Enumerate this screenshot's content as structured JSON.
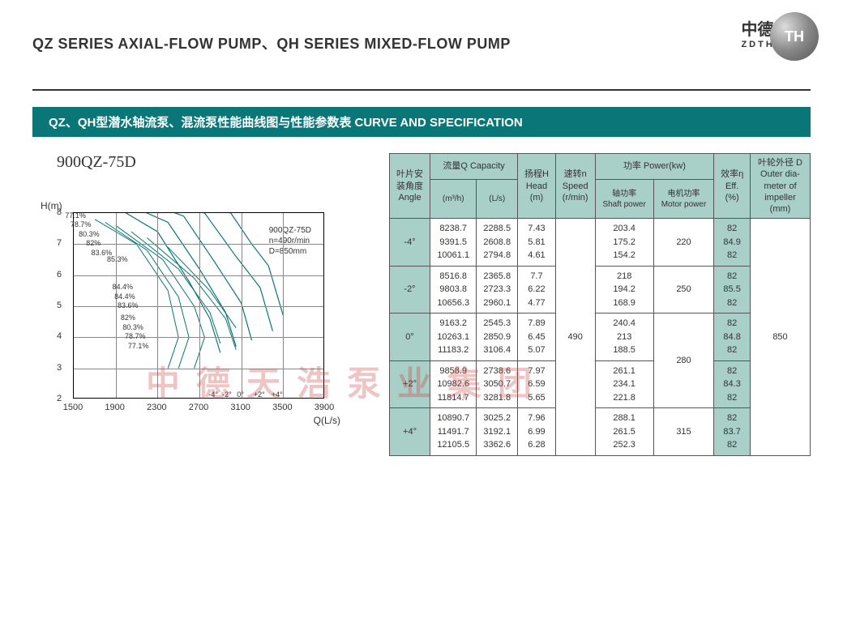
{
  "header": {
    "title": "QZ SERIES AXIAL-FLOW PUMP、QH SERIES MIXED-FLOW PUMP",
    "logo_cn": "中德 天浩",
    "logo_en": "ZDTHPUMP",
    "logo_badge": "TH"
  },
  "banner": "QZ、QH型潜水轴流泵、混流泵性能曲线图与性能参数表  CURVE AND SPECIFICATION",
  "model": "900QZ-75D",
  "watermark": "中德天浩泵业集团",
  "chart": {
    "y_title": "H(m)",
    "x_title": "Q(L/s)",
    "y_ticks": [
      2,
      3,
      4,
      5,
      6,
      7,
      8
    ],
    "x_ticks": [
      1500,
      1900,
      2300,
      2700,
      3100,
      3500,
      3900
    ],
    "info_lines": [
      "900QZ-75D",
      "n=490r/min",
      "D=850mm"
    ],
    "angle_labels": [
      "-4°",
      "-2°",
      "0°",
      "+2°",
      "+4°"
    ],
    "eff_labels": [
      "77.1%",
      "78.7%",
      "80.3%",
      "82%",
      "83.6%",
      "85.3%",
      "84.4%",
      "84.4%",
      "83.6%",
      "82%",
      "80.3%",
      "78.7%",
      "77.1%"
    ],
    "grid_color": "#888888",
    "curve_color": "#0a7678"
  },
  "table": {
    "headers": {
      "angle": "叶片安\n装角度\nAngle",
      "capacity": "流量Q Capacity",
      "capacity_m3h": "(m³/h)",
      "capacity_ls": "(L/s)",
      "head": "扬程H\nHead\n(m)",
      "speed": "速转n\nSpeed\n(r/min)",
      "power": "功率 Power(kw)",
      "shaft_power": "轴功率\nShaft power",
      "motor_power": "电机功率\nMotor power",
      "eff": "效率η\nEff.\n(%)",
      "diameter": "叶轮外径 D\nOuter dia-\nmeter of\nimpeller\n(mm)"
    },
    "speed_val": "490",
    "diameter_val": "850",
    "rows": [
      {
        "angle": "-4°",
        "m3h": "8238.7\n9391.5\n10061.1",
        "ls": "2288.5\n2608.8\n2794.8",
        "head": "7.43\n5.81\n4.61",
        "shaft": "203.4\n175.2\n154.2",
        "motor": "220",
        "eff": "82\n84.9\n82"
      },
      {
        "angle": "-2°",
        "m3h": "8516.8\n9803.8\n10656.3",
        "ls": "2365.8\n2723.3\n2960.1",
        "head": "7.7\n6.22\n4.77",
        "shaft": "218\n194.2\n168.9",
        "motor": "250",
        "eff": "82\n85.5\n82"
      },
      {
        "angle": "0°",
        "m3h": "9163.2\n10263.1\n11183.2",
        "ls": "2545.3\n2850.9\n3106.4",
        "head": "7.89\n6.45\n5.07",
        "shaft": "240.4\n213\n188.5",
        "motor": "280",
        "motor_rowspan": 2,
        "eff": "82\n84.8\n82"
      },
      {
        "angle": "+2°",
        "m3h": "9858.9\n10982.6\n11814.7",
        "ls": "2738.6\n3050.7\n3281.8",
        "head": "7.97\n6.59\n5.65",
        "shaft": "261.1\n234.1\n221.8",
        "motor": null,
        "eff": "82\n84.3\n82"
      },
      {
        "angle": "+4°",
        "m3h": "10890.7\n11491.7\n12105.5",
        "ls": "3025.2\n3192.1\n3362.6",
        "head": "7.96\n6.99\n6.28",
        "shaft": "288.1\n261.5\n252.3",
        "motor": "315",
        "eff": "82\n83.7\n82"
      }
    ]
  }
}
